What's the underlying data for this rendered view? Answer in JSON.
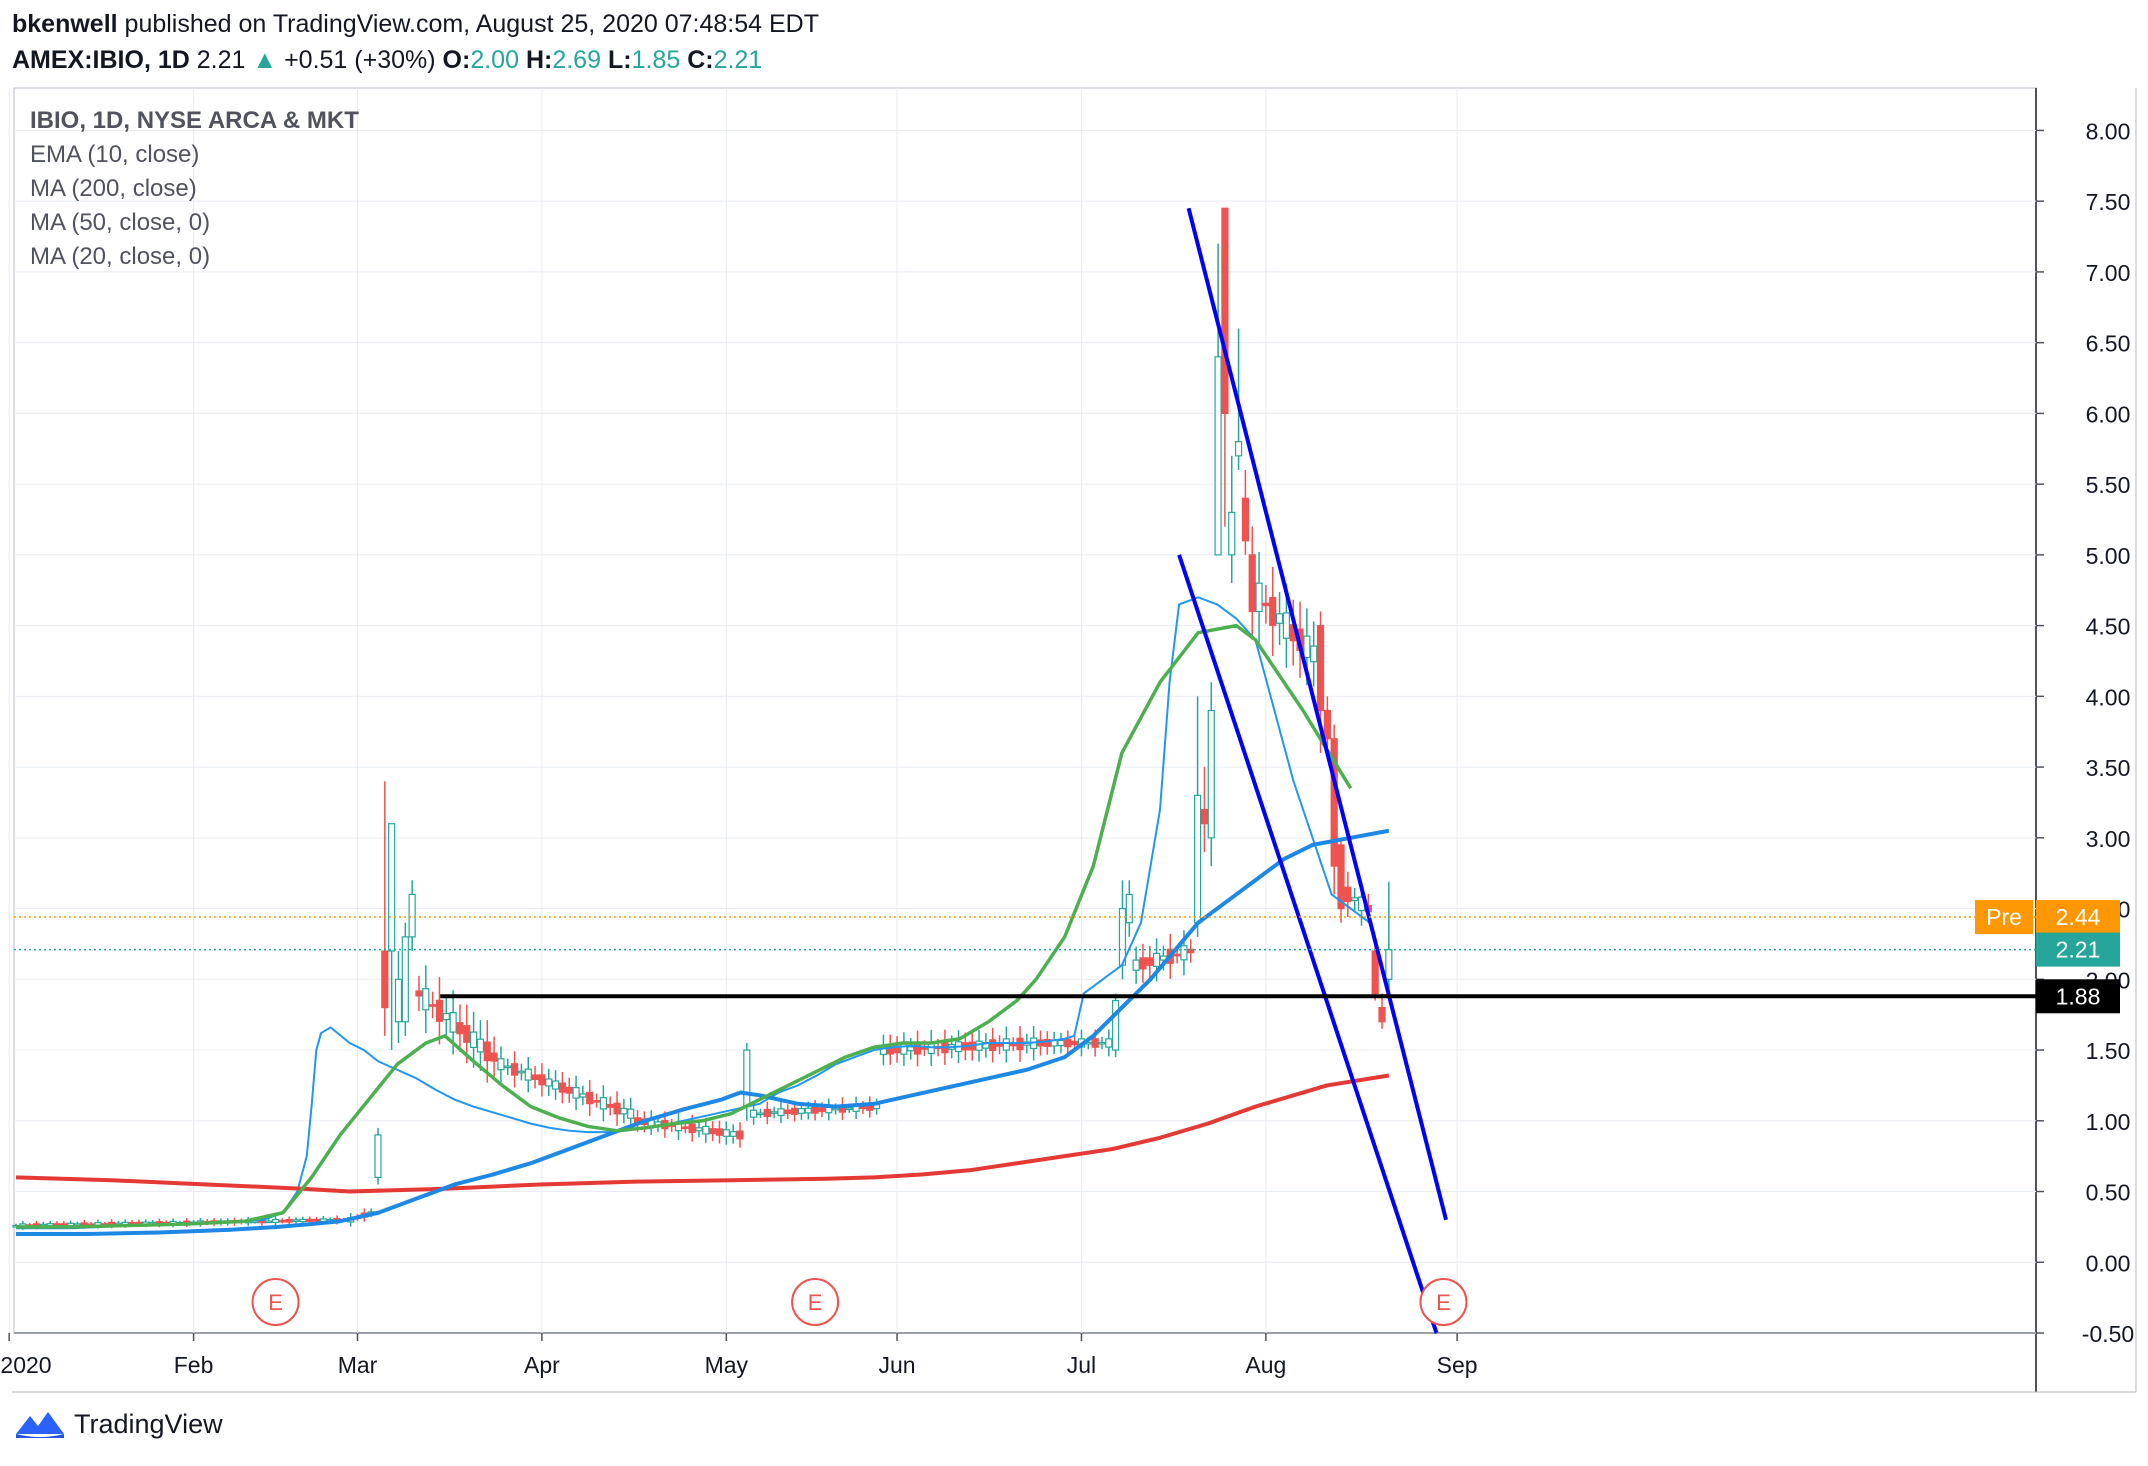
{
  "header": {
    "publisher": "bkenwell",
    "published_text": " published on TradingView.com, August 25, 2020 07:48:54 EDT",
    "symbol": "AMEX:IBIO, 1D",
    "last": "2.21",
    "arrow": "▲",
    "change": "+0.51 (+30%)",
    "o_label": "O:",
    "o_value": "2.00",
    "h_label": "H:",
    "h_value": "2.69",
    "l_label": "L:",
    "l_value": "1.85",
    "c_label": "C:",
    "c_value": "2.21"
  },
  "legend": {
    "title": "IBIO, 1D, NYSE ARCA & MKT",
    "lines": [
      "EMA (10, close)",
      "MA (200, close)",
      "MA (50, close, 0)",
      "MA (20, close, 0)"
    ]
  },
  "footer": {
    "brand": "TradingView"
  },
  "colors": {
    "up": "#26a69a",
    "down": "#ef5350",
    "ema10": "#2196f3",
    "ma200": "#e53935",
    "ma50": "#1e88e5",
    "ma20": "#4caf50",
    "trendline": "#0000ff",
    "support": "#000000",
    "pre": "#ff9800",
    "grid": "#e8ecf3"
  },
  "chart_data": {
    "type": "candlestick",
    "y_axis": {
      "ylim": [
        -0.5,
        8.3
      ],
      "ticks": [
        "8.00",
        "7.50",
        "7.00",
        "6.50",
        "6.00",
        "5.50",
        "5.00",
        "4.50",
        "4.00",
        "3.50",
        "3.00",
        "2.50",
        "2.00",
        "1.50",
        "1.00",
        "0.50",
        "0.00",
        "-0.50"
      ]
    },
    "x_axis": {
      "labels": [
        "2020",
        "Feb",
        "Mar",
        "Apr",
        "May",
        "Jun",
        "Jul",
        "Aug",
        "Sep"
      ]
    },
    "price_labels": [
      {
        "label": "Pre",
        "value": "2.44"
      },
      {
        "value": "2.21"
      },
      {
        "value": "1.88"
      }
    ],
    "earnings_markers": [
      "E",
      "E",
      "E"
    ],
    "series": [
      {
        "name": "EMA (10, close)",
        "values": [
          0.24,
          0.24,
          0.24,
          0.25,
          0.26,
          0.27,
          0.27,
          0.27,
          0.28,
          0.29,
          0.3,
          0.35,
          0.5,
          0.75,
          1.1,
          1.5,
          1.62,
          1.66,
          1.55,
          1.5,
          1.42,
          1.36,
          1.3,
          1.22,
          1.15,
          1.1,
          1.06,
          1.02,
          0.98,
          0.95,
          0.93,
          0.92,
          0.92,
          0.93,
          0.95,
          0.97,
          1.0,
          1.03,
          1.06,
          1.09,
          1.12,
          1.2,
          1.25,
          1.32,
          1.4,
          1.45,
          1.5,
          1.52,
          1.53,
          1.52,
          1.52,
          1.53,
          1.55,
          1.55,
          1.55,
          1.56,
          1.58,
          1.6,
          1.9,
          2.0,
          2.1,
          2.4,
          3.2,
          4.1,
          4.65,
          4.7,
          4.65,
          4.55,
          4.4,
          3.9,
          3.4,
          3.0,
          2.6,
          2.4
        ],
        "days": [
          0,
          6,
          12,
          18,
          24,
          30,
          35,
          38,
          44,
          48,
          52,
          56,
          59,
          61,
          62,
          63,
          64,
          66,
          70,
          73,
          76,
          80,
          84,
          88,
          92,
          96,
          100,
          104,
          108,
          112,
          116,
          120,
          124,
          128,
          132,
          136,
          140,
          144,
          148,
          152,
          156,
          160,
          164,
          168,
          172,
          176,
          180,
          184,
          188,
          192,
          196,
          200,
          204,
          208,
          212,
          216,
          220,
          222,
          224,
          228,
          232,
          236,
          240,
          242,
          244,
          248,
          252,
          256,
          260,
          264,
          268,
          272,
          276,
          284
        ]
      },
      {
        "name": "MA (200, close)",
        "values": [
          0.6,
          0.58,
          0.55,
          0.52,
          0.5,
          0.52,
          0.55,
          0.57,
          0.58,
          0.59,
          0.6,
          0.62,
          0.65,
          0.7,
          0.75,
          0.8,
          0.88,
          0.98,
          1.1,
          1.25,
          1.32
        ],
        "days": [
          0,
          20,
          40,
          60,
          70,
          90,
          110,
          130,
          150,
          170,
          180,
          190,
          200,
          210,
          220,
          230,
          240,
          250,
          260,
          275,
          288
        ]
      },
      {
        "name": "MA (50, close, 0)",
        "values": [
          0.2,
          0.2,
          0.21,
          0.23,
          0.25,
          0.27,
          0.29,
          0.35,
          0.45,
          0.55,
          0.62,
          0.7,
          0.8,
          0.9,
          1.0,
          1.08,
          1.15,
          1.2,
          1.18,
          1.12,
          1.1,
          1.12,
          1.18,
          1.24,
          1.3,
          1.36,
          1.45,
          1.6,
          1.8,
          2.0,
          2.4,
          2.6,
          2.85,
          2.95,
          3.0,
          3.05
        ],
        "days": [
          0,
          15,
          30,
          45,
          55,
          62,
          68,
          76,
          84,
          92,
          100,
          108,
          116,
          124,
          132,
          140,
          148,
          152,
          156,
          164,
          172,
          180,
          188,
          196,
          204,
          212,
          220,
          226,
          232,
          238,
          248,
          256,
          266,
          272,
          280,
          288
        ]
      },
      {
        "name": "MA (20, close, 0)",
        "values": [
          0.25,
          0.25,
          0.26,
          0.27,
          0.29,
          0.35,
          0.6,
          0.9,
          1.15,
          1.4,
          1.55,
          1.6,
          1.42,
          1.25,
          1.1,
          1.02,
          0.96,
          0.93,
          0.95,
          0.98,
          1.0,
          1.05,
          1.15,
          1.25,
          1.35,
          1.45,
          1.52,
          1.55,
          1.55,
          1.58,
          1.7,
          1.85,
          2.0,
          2.3,
          2.8,
          3.6,
          4.1,
          4.45,
          4.5,
          4.4,
          3.9,
          3.35
        ],
        "days": [
          0,
          12,
          24,
          36,
          48,
          56,
          62,
          68,
          74,
          80,
          86,
          90,
          96,
          102,
          108,
          114,
          120,
          126,
          132,
          138,
          144,
          150,
          156,
          162,
          168,
          174,
          180,
          186,
          192,
          198,
          204,
          210,
          214,
          220,
          226,
          232,
          240,
          248,
          256,
          260,
          270,
          280
        ]
      }
    ],
    "trendlines": [
      {
        "name": "downtrend-upper",
        "from": {
          "day": 246,
          "value": 7.45
        },
        "to": {
          "day": 300,
          "value": 0.3
        }
      },
      {
        "name": "downtrend-lower",
        "from": {
          "day": 244,
          "value": 5.0
        },
        "to": {
          "day": 298,
          "value": -0.5
        }
      },
      {
        "name": "support",
        "from": {
          "day": 89,
          "value": 1.88
        },
        "to": {
          "day": 300,
          "value": 1.88
        }
      }
    ]
  }
}
